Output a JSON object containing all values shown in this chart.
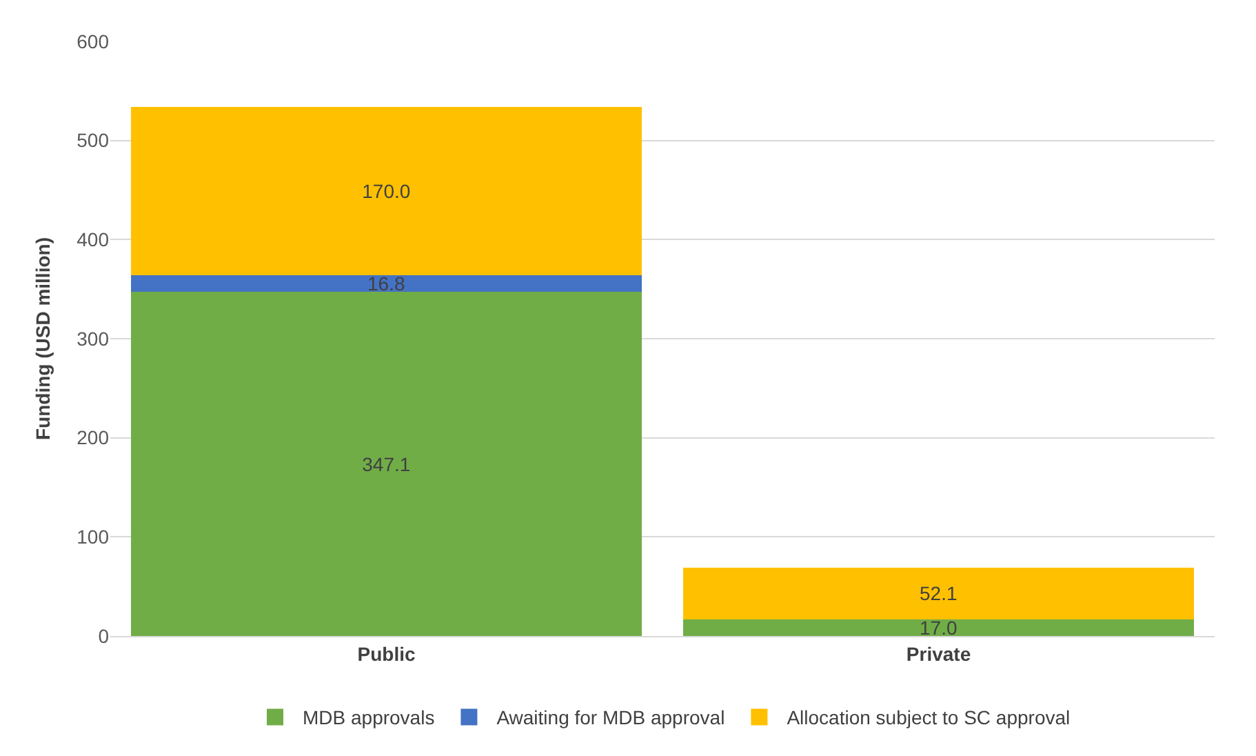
{
  "chart_data": {
    "type": "bar",
    "stacked": true,
    "ylabel": "Funding (USD million)",
    "categories": [
      "Public",
      "Private"
    ],
    "series": [
      {
        "name": "MDB approvals",
        "color": "#70ad47",
        "values": [
          347.1,
          17.0
        ],
        "value_labels": [
          "347.1",
          "17.0"
        ]
      },
      {
        "name": "Awaiting for MDB approval",
        "color": "#4472c4",
        "values": [
          16.8,
          null
        ],
        "value_labels": [
          "16.8",
          null
        ]
      },
      {
        "name": "Allocation subject to SC approval",
        "color": "#ffc000",
        "values": [
          170.0,
          52.1
        ],
        "value_labels": [
          "170.0",
          "52.1"
        ]
      }
    ],
    "ylim": [
      0,
      600
    ],
    "yticks": [
      0,
      100,
      200,
      300,
      400,
      500,
      600
    ],
    "grid": "y",
    "legend": "bottom"
  }
}
